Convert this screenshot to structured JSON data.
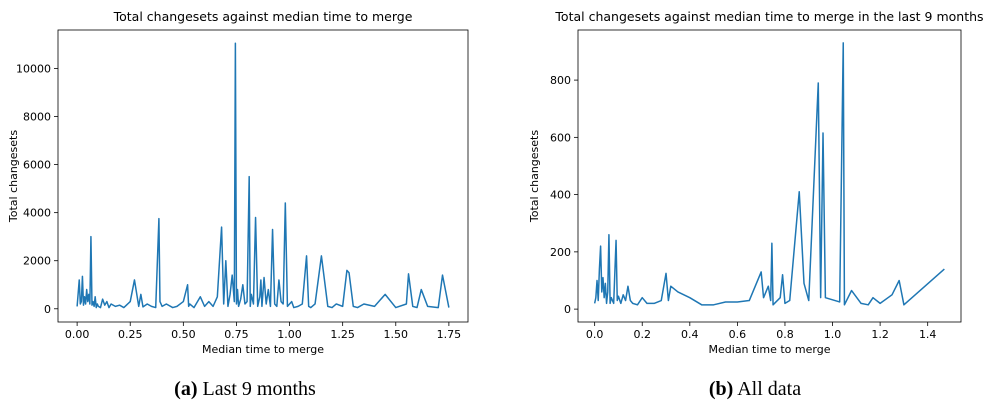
{
  "chart_data": [
    {
      "type": "line",
      "title": "Total changesets against median time to merge",
      "xlabel": "Median time to merge",
      "ylabel": "Total changesets",
      "xlim": [
        -0.09,
        1.84
      ],
      "ylim": [
        -550,
        11600
      ],
      "xticks": [
        0.0,
        0.25,
        0.5,
        0.75,
        1.0,
        1.25,
        1.5,
        1.75
      ],
      "xtick_labels": [
        "0.00",
        "0.25",
        "0.50",
        "0.75",
        "1.00",
        "1.25",
        "1.50",
        "1.75"
      ],
      "yticks": [
        0,
        2000,
        4000,
        6000,
        8000,
        10000
      ],
      "ytick_labels": [
        "0",
        "2000",
        "4000",
        "6000",
        "8000",
        "10000"
      ],
      "grid": false,
      "color": "#1f77b4",
      "x": [
        0.0,
        0.01,
        0.015,
        0.02,
        0.025,
        0.03,
        0.035,
        0.04,
        0.045,
        0.05,
        0.055,
        0.06,
        0.065,
        0.07,
        0.075,
        0.08,
        0.085,
        0.09,
        0.095,
        0.1,
        0.11,
        0.12,
        0.13,
        0.14,
        0.15,
        0.16,
        0.18,
        0.2,
        0.22,
        0.25,
        0.27,
        0.29,
        0.3,
        0.31,
        0.33,
        0.35,
        0.37,
        0.385,
        0.39,
        0.4,
        0.42,
        0.45,
        0.47,
        0.5,
        0.52,
        0.525,
        0.53,
        0.55,
        0.58,
        0.6,
        0.62,
        0.64,
        0.66,
        0.68,
        0.69,
        0.7,
        0.71,
        0.72,
        0.73,
        0.74,
        0.745,
        0.75,
        0.755,
        0.76,
        0.77,
        0.78,
        0.79,
        0.8,
        0.81,
        0.815,
        0.82,
        0.83,
        0.84,
        0.85,
        0.86,
        0.865,
        0.87,
        0.88,
        0.89,
        0.9,
        0.91,
        0.92,
        0.93,
        0.94,
        0.95,
        0.96,
        0.97,
        0.98,
        0.99,
        1.0,
        1.01,
        1.02,
        1.04,
        1.06,
        1.08,
        1.09,
        1.1,
        1.12,
        1.15,
        1.18,
        1.2,
        1.22,
        1.25,
        1.27,
        1.28,
        1.3,
        1.32,
        1.35,
        1.4,
        1.45,
        1.5,
        1.55,
        1.56,
        1.58,
        1.6,
        1.62,
        1.65,
        1.7,
        1.72,
        1.75
      ],
      "y": [
        100,
        1200,
        200,
        300,
        1350,
        150,
        500,
        200,
        800,
        300,
        600,
        200,
        3000,
        150,
        300,
        100,
        500,
        50,
        200,
        100,
        50,
        400,
        150,
        300,
        50,
        200,
        100,
        150,
        50,
        300,
        1200,
        100,
        600,
        80,
        200,
        100,
        50,
        3750,
        300,
        100,
        200,
        50,
        100,
        300,
        1000,
        100,
        200,
        50,
        500,
        100,
        300,
        100,
        500,
        3400,
        200,
        2000,
        100,
        600,
        1400,
        300,
        11050,
        200,
        800,
        100,
        400,
        1000,
        200,
        300,
        5500,
        100,
        600,
        200,
        3800,
        100,
        500,
        1200,
        100,
        1300,
        200,
        800,
        100,
        3300,
        200,
        100,
        1200,
        300,
        200,
        4400,
        100,
        200,
        300,
        50,
        100,
        200,
        2200,
        100,
        50,
        200,
        2200,
        100,
        50,
        200,
        100,
        1600,
        1500,
        100,
        50,
        200,
        100,
        600,
        50,
        200,
        1450,
        100,
        50,
        800,
        100,
        50,
        1400,
        50
      ]
    },
    {
      "type": "line",
      "title": "Total changesets against median time to merge in the last 9 months",
      "xlabel": "Median time to merge",
      "ylabel": "Total changesets",
      "xlim": [
        -0.07,
        1.54
      ],
      "ylim": [
        -45,
        975
      ],
      "xticks": [
        0.0,
        0.2,
        0.4,
        0.6,
        0.8,
        1.0,
        1.2,
        1.4
      ],
      "xtick_labels": [
        "0.0",
        "0.2",
        "0.4",
        "0.6",
        "0.8",
        "1.0",
        "1.2",
        "1.4"
      ],
      "yticks": [
        0,
        200,
        400,
        600,
        800
      ],
      "ytick_labels": [
        "0",
        "200",
        "400",
        "600",
        "800"
      ],
      "grid": false,
      "color": "#1f77b4",
      "x": [
        0.0,
        0.005,
        0.01,
        0.015,
        0.02,
        0.025,
        0.03,
        0.035,
        0.04,
        0.045,
        0.05,
        0.055,
        0.06,
        0.065,
        0.07,
        0.08,
        0.09,
        0.095,
        0.1,
        0.11,
        0.12,
        0.13,
        0.14,
        0.15,
        0.16,
        0.18,
        0.2,
        0.22,
        0.25,
        0.28,
        0.3,
        0.31,
        0.32,
        0.35,
        0.4,
        0.45,
        0.5,
        0.55,
        0.6,
        0.65,
        0.7,
        0.71,
        0.73,
        0.74,
        0.745,
        0.75,
        0.78,
        0.79,
        0.8,
        0.82,
        0.86,
        0.88,
        0.9,
        0.94,
        0.95,
        0.96,
        0.97,
        1.03,
        1.045,
        1.05,
        1.08,
        1.12,
        1.15,
        1.17,
        1.2,
        1.25,
        1.28,
        1.3,
        1.47
      ],
      "y": [
        20,
        40,
        100,
        30,
        140,
        220,
        60,
        110,
        40,
        90,
        20,
        60,
        260,
        20,
        40,
        20,
        240,
        30,
        45,
        20,
        50,
        30,
        80,
        30,
        20,
        15,
        40,
        20,
        20,
        30,
        125,
        30,
        80,
        60,
        40,
        15,
        15,
        25,
        25,
        30,
        130,
        40,
        80,
        30,
        230,
        15,
        40,
        120,
        20,
        30,
        410,
        90,
        30,
        790,
        40,
        615,
        40,
        25,
        930,
        15,
        65,
        20,
        15,
        40,
        20,
        50,
        100,
        15,
        140
      ]
    }
  ],
  "captions": [
    {
      "label": "(a)",
      "text": " Last 9 months"
    },
    {
      "label": "(b)",
      "text": " All data"
    }
  ]
}
